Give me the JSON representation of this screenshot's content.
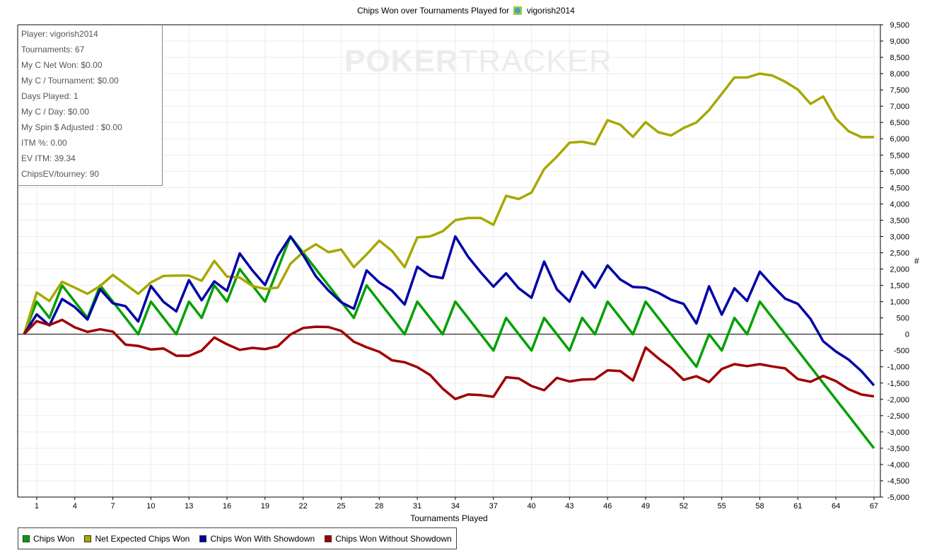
{
  "chart_data": {
    "type": "line",
    "title_prefix": "Chips Won over Tournaments Played for",
    "title_player": "vigorish2014",
    "xlabel": "Tournaments Played",
    "ylabel": "#",
    "xlim": [
      0,
      67
    ],
    "ylim": [
      -5000,
      9500
    ],
    "x_ticks": [
      1,
      4,
      7,
      10,
      13,
      16,
      19,
      22,
      25,
      28,
      31,
      34,
      37,
      40,
      43,
      46,
      49,
      52,
      55,
      58,
      61,
      64,
      67
    ],
    "y_ticks": [
      "9,500",
      "9,000",
      "8,500",
      "8,000",
      "7,500",
      "7,000",
      "6,500",
      "6,000",
      "5,500",
      "5,000",
      "4,500",
      "4,000",
      "3,500",
      "3,000",
      "2,500",
      "2,000",
      "1,500",
      "1,000",
      "500",
      "0",
      "-500",
      "-1,000",
      "-1,500",
      "-2,000",
      "-2,500",
      "-3,000",
      "-3,500",
      "-4,000",
      "-4,500",
      "-5,000"
    ],
    "grid": true,
    "legend_position": "bottom-left",
    "watermark": "POKERTRACKER",
    "series": [
      {
        "name": "Chips Won",
        "color": "#00a000",
        "values": [
          0,
          1000,
          500,
          1500,
          1000,
          500,
          1500,
          1000,
          500,
          0,
          1000,
          500,
          0,
          1000,
          500,
          1500,
          1000,
          2000,
          1500,
          1000,
          2000,
          3000,
          2500,
          2000,
          1500,
          1000,
          500,
          1500,
          1000,
          500,
          0,
          1000,
          500,
          0,
          1000,
          500,
          0,
          -500,
          500,
          0,
          -500,
          500,
          0,
          -500,
          500,
          0,
          1000,
          500,
          0,
          1000,
          500,
          0,
          -500,
          -1000,
          0,
          -500,
          500,
          0,
          1000,
          500,
          0,
          -500,
          -1000,
          -1500,
          -2000,
          -2500,
          -3000,
          -3500
        ]
      },
      {
        "name": "Net Expected Chips Won",
        "color": "#a8a800",
        "values": [
          0,
          1280,
          1020,
          1610,
          1430,
          1240,
          1480,
          1820,
          1530,
          1240,
          1590,
          1790,
          1800,
          1800,
          1640,
          2250,
          1770,
          1740,
          1480,
          1390,
          1430,
          2160,
          2520,
          2760,
          2520,
          2600,
          2060,
          2450,
          2870,
          2560,
          2060,
          2970,
          3000,
          3160,
          3500,
          3570,
          3570,
          3360,
          4250,
          4150,
          4350,
          5070,
          5450,
          5880,
          5910,
          5830,
          6570,
          6430,
          6060,
          6510,
          6200,
          6100,
          6330,
          6500,
          6880,
          7380,
          7880,
          7880,
          8000,
          7940,
          7750,
          7510,
          7070,
          7300,
          6620,
          6230,
          6050,
          6050
        ]
      },
      {
        "name": "Chips Won With Showdown",
        "color": "#0000a8",
        "values": [
          0,
          610,
          270,
          1080,
          830,
          450,
          1380,
          950,
          860,
          390,
          1480,
          990,
          700,
          1660,
          1040,
          1620,
          1330,
          2480,
          1960,
          1510,
          2400,
          3000,
          2430,
          1780,
          1340,
          980,
          780,
          1960,
          1590,
          1340,
          910,
          2070,
          1790,
          1720,
          3000,
          2380,
          1900,
          1460,
          1870,
          1410,
          1120,
          2230,
          1380,
          1000,
          1920,
          1430,
          2110,
          1680,
          1450,
          1430,
          1270,
          1060,
          930,
          330,
          1470,
          600,
          1410,
          1020,
          1920,
          1490,
          1090,
          930,
          470,
          -220,
          -530,
          -780,
          -1130,
          -1570
        ]
      },
      {
        "name": "Chips Won Without Showdown",
        "color": "#a00000",
        "values": [
          0,
          400,
          280,
          440,
          210,
          70,
          150,
          80,
          -320,
          -360,
          -470,
          -440,
          -660,
          -660,
          -500,
          -100,
          -310,
          -480,
          -420,
          -460,
          -370,
          -10,
          190,
          230,
          220,
          100,
          -230,
          -400,
          -540,
          -800,
          -860,
          -1010,
          -1250,
          -1670,
          -1990,
          -1850,
          -1870,
          -1920,
          -1320,
          -1360,
          -1590,
          -1720,
          -1340,
          -1450,
          -1390,
          -1380,
          -1110,
          -1130,
          -1420,
          -410,
          -740,
          -1030,
          -1400,
          -1290,
          -1470,
          -1070,
          -920,
          -980,
          -920,
          -990,
          -1050,
          -1380,
          -1460,
          -1280,
          -1440,
          -1690,
          -1850,
          -1910
        ]
      }
    ]
  },
  "info_box": [
    "Player: vigorish2014",
    "Tournaments: 67",
    "My C Net Won: $0.00",
    "My C / Tournament: $0.00",
    "Days Played: 1",
    "My C / Day: $0.00",
    "My Spin $ Adjusted : $0.00",
    "ITM %: 0.00",
    "EV ITM: 39.34",
    "ChipsEV/tourney: 90"
  ],
  "watermark_parts": [
    "POKER",
    "TRACKER"
  ]
}
